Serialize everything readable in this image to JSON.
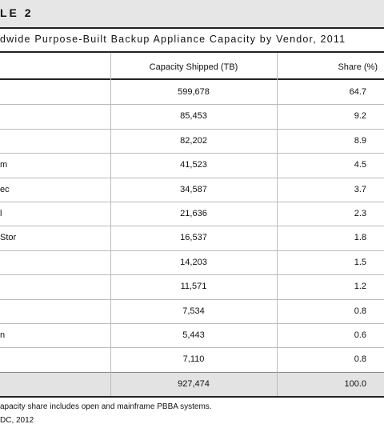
{
  "header": {
    "title": "LE 2",
    "subtitle": "dwide Purpose-Built Backup Appliance Capacity by Vendor, 2011"
  },
  "table": {
    "columns": [
      "Capacity Shipped (TB)",
      "Share (%)"
    ],
    "rows": [
      {
        "capacity": "599,678",
        "share": "64.7"
      },
      {
        "capacity": "85,453",
        "share": "9.2"
      },
      {
        "capacity": "82,202",
        "share": "8.9"
      },
      {
        "label": "m",
        "capacity": "41,523",
        "share": "4.5"
      },
      {
        "label": "ec",
        "capacity": "34,587",
        "share": "3.7"
      },
      {
        "label": "l",
        "capacity": "21,636",
        "share": "2.3"
      },
      {
        "label": "Stor",
        "capacity": "16,537",
        "share": "1.8"
      },
      {
        "capacity": "14,203",
        "share": "1.5"
      },
      {
        "capacity": "11,571",
        "share": "1.2"
      },
      {
        "capacity": "7,534",
        "share": "0.8"
      },
      {
        "label": "n",
        "capacity": "5,443",
        "share": "0.6"
      },
      {
        "capacity": "7,110",
        "share": "0.8"
      }
    ],
    "total": {
      "capacity": "927,474",
      "share": "100.0"
    }
  },
  "footnotes": [
    "apacity share includes open and mainframe PBBA systems.",
    "DC, 2012"
  ]
}
